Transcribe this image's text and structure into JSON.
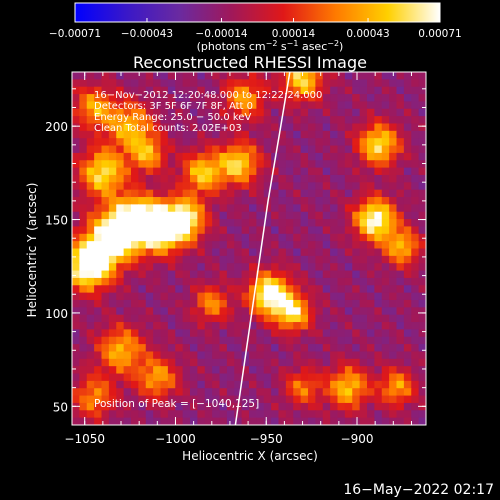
{
  "chart_data": {
    "type": "heatmap",
    "title": "Reconstructed RHESSI Image",
    "xlabel": "Heliocentric X (arcsec)",
    "ylabel": "Heliocentric Y (arcsec)",
    "xlim": [
      -1057,
      -862
    ],
    "ylim": [
      40,
      229
    ],
    "x_ticks": [
      -1050,
      -1000,
      -950,
      -900
    ],
    "x_tick_labels": [
      "−1050",
      "−1000",
      "−950",
      "−900"
    ],
    "y_ticks": [
      50,
      100,
      150,
      200
    ],
    "y_tick_labels": [
      "50",
      "100",
      "150",
      "200"
    ],
    "colorbar": {
      "min": -0.00071,
      "max": 0.00071,
      "ticks": [
        -0.00071,
        -0.00043,
        -0.00014,
        0.00014,
        0.00043,
        0.00071
      ],
      "tick_labels": [
        "−0.00071",
        "−0.00043",
        "−0.00014",
        "0.00014",
        "0.00043",
        "0.00071"
      ],
      "units_text": "(photons cm",
      "units_sup1": "−2",
      "units_mid": " s",
      "units_sup2": "−1",
      "units_end": " asec",
      "units_sup3": "−2",
      "units_close": ")",
      "colors": [
        "#0000ff",
        "#3a18c8",
        "#6a2aa0",
        "#a0185a",
        "#e01818",
        "#ff7a00",
        "#ffd000",
        "#ffffff"
      ]
    },
    "info_lines": [
      "16−Nov−2012 12:20:48.000 to 12:22:24.000",
      "Detectors: 3F 5F 6F 7F 8F, Att 0",
      "Energy Range: 25.0 − 50.0 keV",
      "Clean      Total counts: 2.02E+03"
    ],
    "peak_label": "Position of Peak = [−1040,125]",
    "limb_x_at_y": [
      [
        -967,
        40
      ],
      [
        -961,
        80
      ],
      [
        -955,
        120
      ],
      [
        -949,
        160
      ],
      [
        -942,
        200
      ],
      [
        -937,
        229
      ]
    ],
    "sources": [
      {
        "x": -1048,
        "y": 125,
        "amp": 1.0,
        "sigma": 9
      },
      {
        "x": -1035,
        "y": 140,
        "amp": 0.9,
        "sigma": 10
      },
      {
        "x": -1022,
        "y": 150,
        "amp": 0.85,
        "sigma": 9
      },
      {
        "x": -1008,
        "y": 145,
        "amp": 0.9,
        "sigma": 9
      },
      {
        "x": -995,
        "y": 150,
        "amp": 0.8,
        "sigma": 8
      },
      {
        "x": -1040,
        "y": 175,
        "amp": 0.75,
        "sigma": 9
      },
      {
        "x": -1025,
        "y": 200,
        "amp": 0.6,
        "sigma": 9
      },
      {
        "x": -1045,
        "y": 210,
        "amp": 0.55,
        "sigma": 8
      },
      {
        "x": -1015,
        "y": 185,
        "amp": 0.55,
        "sigma": 7
      },
      {
        "x": -985,
        "y": 175,
        "amp": 0.65,
        "sigma": 8
      },
      {
        "x": -965,
        "y": 180,
        "amp": 0.7,
        "sigma": 8
      },
      {
        "x": -1030,
        "y": 80,
        "amp": 0.6,
        "sigma": 9
      },
      {
        "x": -1010,
        "y": 65,
        "amp": 0.55,
        "sigma": 8
      },
      {
        "x": -1045,
        "y": 55,
        "amp": 0.5,
        "sigma": 8
      },
      {
        "x": -980,
        "y": 105,
        "amp": 0.5,
        "sigma": 7
      },
      {
        "x": -948,
        "y": 110,
        "amp": 0.95,
        "sigma": 8
      },
      {
        "x": -935,
        "y": 100,
        "amp": 0.7,
        "sigma": 7
      },
      {
        "x": -930,
        "y": 225,
        "amp": 0.7,
        "sigma": 8
      },
      {
        "x": -888,
        "y": 190,
        "amp": 0.75,
        "sigma": 8
      },
      {
        "x": -890,
        "y": 150,
        "amp": 0.9,
        "sigma": 8
      },
      {
        "x": -875,
        "y": 135,
        "amp": 0.6,
        "sigma": 7
      },
      {
        "x": -905,
        "y": 60,
        "amp": 0.65,
        "sigma": 8
      },
      {
        "x": -878,
        "y": 60,
        "amp": 0.55,
        "sigma": 7
      },
      {
        "x": -930,
        "y": 60,
        "amp": 0.45,
        "sigma": 7
      },
      {
        "x": -962,
        "y": 215,
        "amp": 0.55,
        "sigma": 8
      }
    ]
  },
  "timestamp": "16−May−2022 02:17"
}
